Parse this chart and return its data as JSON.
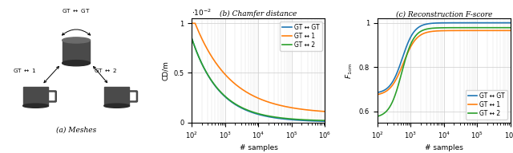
{
  "cd_colors": [
    "#1f77b4",
    "#ff7f0e",
    "#2ca02c"
  ],
  "cd_labels": [
    "GT ↔ GT",
    "GT ↔ 1",
    "GT ↔ 2"
  ],
  "fscore_colors": [
    "#1f77b4",
    "#ff7f0e",
    "#2ca02c"
  ],
  "fscore_labels": [
    "GT ↔ GT",
    "GT ↔ 1",
    "GT ↔ 2"
  ],
  "xlabel": "# samples",
  "cd_ylabel": "CD/m",
  "fscore_ylabel": "$F_{1\\mathrm{cm}}$",
  "cd_title": "(b) Chamfer distance",
  "fscore_title": "(c) Reconstruction F-score",
  "mesh_title": "(a) Meshes",
  "fscore_ylim": [
    0.55,
    1.02
  ],
  "x_range": [
    100,
    1000000
  ],
  "background_color": "#ffffff",
  "grid_color": "#cccccc"
}
